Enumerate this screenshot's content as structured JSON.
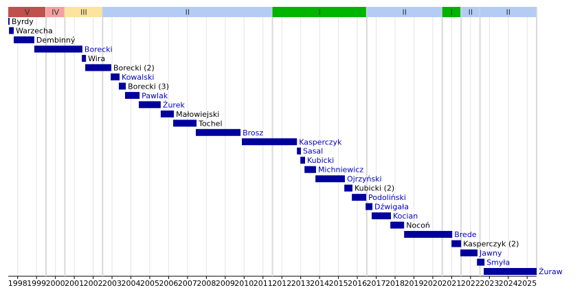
{
  "chart_data": {
    "type": "timeline",
    "xlim": [
      1997.5,
      2025.5
    ],
    "xticks": [
      1998,
      1999,
      2000,
      2001,
      2002,
      2003,
      2004,
      2005,
      2006,
      2007,
      2008,
      2009,
      2010,
      2011,
      2012,
      2013,
      2014,
      2015,
      2016,
      2017,
      2018,
      2019,
      2020,
      2021,
      2022,
      2023,
      2024,
      2025
    ],
    "grid": true,
    "bar_color": "#00009c",
    "bands": [
      {
        "label": "V",
        "start": 1997.5,
        "end": 1999.5,
        "color": "#c0504d"
      },
      {
        "label": "IV",
        "start": 1999.5,
        "end": 2000.5,
        "color": "#f4a0a0"
      },
      {
        "label": "III",
        "start": 2000.5,
        "end": 2002.5,
        "color": "#fde49c"
      },
      {
        "label": "II",
        "start": 2002.5,
        "end": 2011.5,
        "color": "#b4ccf4"
      },
      {
        "label": "I",
        "start": 2011.5,
        "end": 2016.5,
        "color": "#00b400"
      },
      {
        "label": "II",
        "start": 2016.5,
        "end": 2020.5,
        "color": "#b4ccf4"
      },
      {
        "label": "I",
        "start": 2020.5,
        "end": 2021.5,
        "color": "#00b400"
      },
      {
        "label": "II",
        "start": 2021.5,
        "end": 2022.5,
        "color": "#b4ccf4"
      },
      {
        "label": "II",
        "start": 2022.5,
        "end": 2025.5,
        "color": "#b4ccf4"
      }
    ],
    "bars": [
      {
        "name": "Byrdy",
        "start": 1997.5,
        "end": 1997.57,
        "label_color": "#000000"
      },
      {
        "name": "Warzecha",
        "start": 1997.54,
        "end": 1997.79,
        "label_color": "#000000"
      },
      {
        "name": "Dembinný",
        "start": 1997.79,
        "end": 1998.88,
        "label_color": "#000000"
      },
      {
        "name": "Borecki",
        "start": 1998.88,
        "end": 2001.43,
        "label_color": "#0000c0"
      },
      {
        "name": "Wira",
        "start": 2001.4,
        "end": 2001.62,
        "label_color": "#000000"
      },
      {
        "name": "Borecki (2)",
        "start": 2001.58,
        "end": 2002.96,
        "label_color": "#000000"
      },
      {
        "name": "Kowalski",
        "start": 2002.93,
        "end": 2003.4,
        "label_color": "#0000c0"
      },
      {
        "name": "Borecki (3)",
        "start": 2003.36,
        "end": 2003.73,
        "label_color": "#000000"
      },
      {
        "name": "Pawlak",
        "start": 2003.69,
        "end": 2004.46,
        "label_color": "#0000c0"
      },
      {
        "name": "Żurek",
        "start": 2004.42,
        "end": 2005.58,
        "label_color": "#0000c0"
      },
      {
        "name": "Małowiejski",
        "start": 2005.58,
        "end": 2006.28,
        "label_color": "#000000"
      },
      {
        "name": "Tochel",
        "start": 2006.24,
        "end": 2007.48,
        "label_color": "#000000"
      },
      {
        "name": "Brosz",
        "start": 2007.44,
        "end": 2009.81,
        "label_color": "#0000c0"
      },
      {
        "name": "Kasperczyk",
        "start": 2009.88,
        "end": 2012.8,
        "label_color": "#0000c0"
      },
      {
        "name": "Sasal",
        "start": 2012.8,
        "end": 2013.01,
        "label_color": "#0000c0"
      },
      {
        "name": "Kubicki",
        "start": 2012.98,
        "end": 2013.23,
        "label_color": "#0000c0"
      },
      {
        "name": "Michniewicz",
        "start": 2013.2,
        "end": 2013.81,
        "label_color": "#0000c0"
      },
      {
        "name": "Ojrzyński",
        "start": 2013.78,
        "end": 2015.34,
        "label_color": "#0000c0"
      },
      {
        "name": "Kubicki (2)",
        "start": 2015.31,
        "end": 2015.74,
        "label_color": "#000000"
      },
      {
        "name": "Podoliński",
        "start": 2015.71,
        "end": 2016.47,
        "label_color": "#0000c0"
      },
      {
        "name": "Dźwigała",
        "start": 2016.44,
        "end": 2016.8,
        "label_color": "#0000c0"
      },
      {
        "name": "Kocian",
        "start": 2016.76,
        "end": 2017.78,
        "label_color": "#0000c0"
      },
      {
        "name": "Nocoń",
        "start": 2017.75,
        "end": 2018.48,
        "label_color": "#000000"
      },
      {
        "name": "Brede",
        "start": 2018.48,
        "end": 2021.03,
        "label_color": "#0000c0"
      },
      {
        "name": "Kasperczyk (2)",
        "start": 2020.99,
        "end": 2021.5,
        "label_color": "#000000"
      },
      {
        "name": "Jawny",
        "start": 2021.46,
        "end": 2022.37,
        "label_color": "#0000c0"
      },
      {
        "name": "Smyła",
        "start": 2022.34,
        "end": 2022.74,
        "label_color": "#0000c0"
      },
      {
        "name": "Żuraw",
        "start": 2022.7,
        "end": 2025.5,
        "label_color": "#0000c0"
      }
    ]
  }
}
